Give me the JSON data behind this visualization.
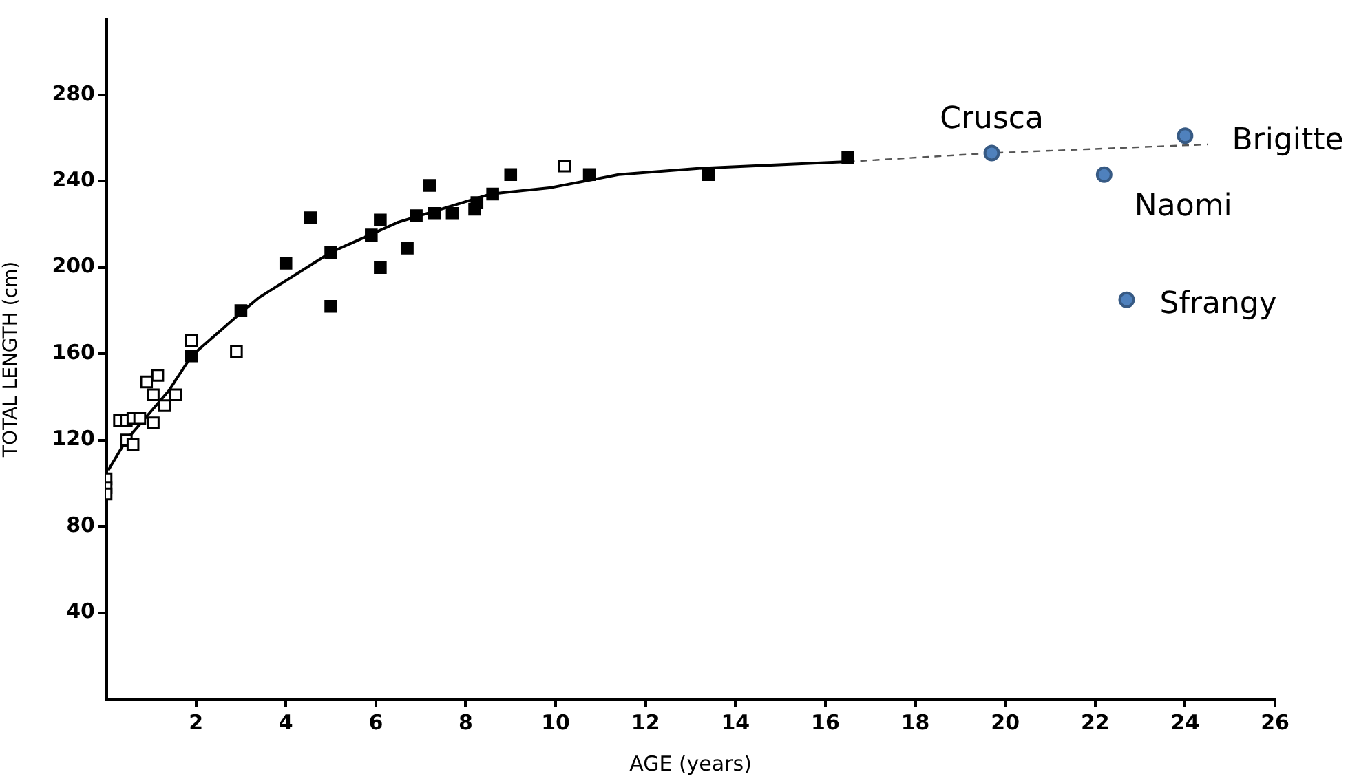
{
  "chart_data": {
    "type": "scatter",
    "xlabel": "AGE (years)",
    "ylabel": "TOTAL LENGTH (cm)",
    "xlim": [
      0,
      26
    ],
    "xticks": [
      2,
      4,
      6,
      8,
      10,
      12,
      14,
      16,
      18,
      20,
      22,
      24,
      26
    ],
    "ylim": [
      0,
      315
    ],
    "yticks": [
      40,
      80,
      120,
      160,
      200,
      240,
      280
    ],
    "grid": false,
    "legend": false,
    "series": [
      {
        "type": "scatter",
        "marker": "square",
        "color": "#ffffff",
        "x": [
          0,
          0,
          0,
          0.3,
          0.45,
          0.6,
          0.45,
          0.6,
          0.75,
          0.9,
          1.15,
          1.05,
          1.3,
          1.05,
          1.55,
          1.9,
          2.9,
          10.2
        ],
        "values": [
          102,
          98,
          95,
          129,
          129,
          130,
          120,
          118,
          130,
          147,
          150,
          141,
          136,
          128,
          141,
          166,
          161,
          247
        ]
      },
      {
        "type": "scatter",
        "marker": "square",
        "color": "#000000",
        "x": [
          1.9,
          3.0,
          4.0,
          4.55,
          5.0,
          5.0,
          5.9,
          6.1,
          6.1,
          6.7,
          6.9,
          7.2,
          7.3,
          7.7,
          8.25,
          8.2,
          8.6,
          9.0,
          10.75,
          13.4,
          16.5
        ],
        "values": [
          159,
          180,
          202,
          223,
          207,
          182,
          215,
          222,
          200,
          209,
          224,
          238,
          225,
          225,
          230,
          227,
          234,
          243,
          243,
          243,
          251
        ]
      },
      {
        "type": "line",
        "marker": "none",
        "line_style": "solid",
        "color": "#000000",
        "x": [
          0.05,
          0.45,
          1.4,
          1.9,
          3.0,
          3.4,
          5.0,
          6.5,
          8.55,
          9.9,
          11.4,
          13.25,
          16.5
        ],
        "values": [
          106,
          120,
          143,
          159,
          179,
          186,
          207,
          221,
          234,
          237,
          243,
          246,
          249
        ]
      },
      {
        "type": "line",
        "marker": "none",
        "line_style": "dashed",
        "color": "#555555",
        "x": [
          16.5,
          19.7,
          24.5
        ],
        "values": [
          249,
          253,
          257
        ]
      },
      {
        "type": "scatter",
        "marker": "circle",
        "color": "#4f81bd",
        "x": [
          19.7,
          22.2,
          24.0,
          22.7
        ],
        "values": [
          253,
          243,
          261,
          185
        ]
      }
    ],
    "annotations": [
      {
        "text": "Crusca",
        "x": 19.7,
        "y": 253
      },
      {
        "text": "Naomi",
        "x": 22.2,
        "y": 243
      },
      {
        "text": "Brigitte",
        "x": 24.0,
        "y": 261
      },
      {
        "text": "Sfrangy",
        "x": 22.7,
        "y": 185
      }
    ]
  }
}
